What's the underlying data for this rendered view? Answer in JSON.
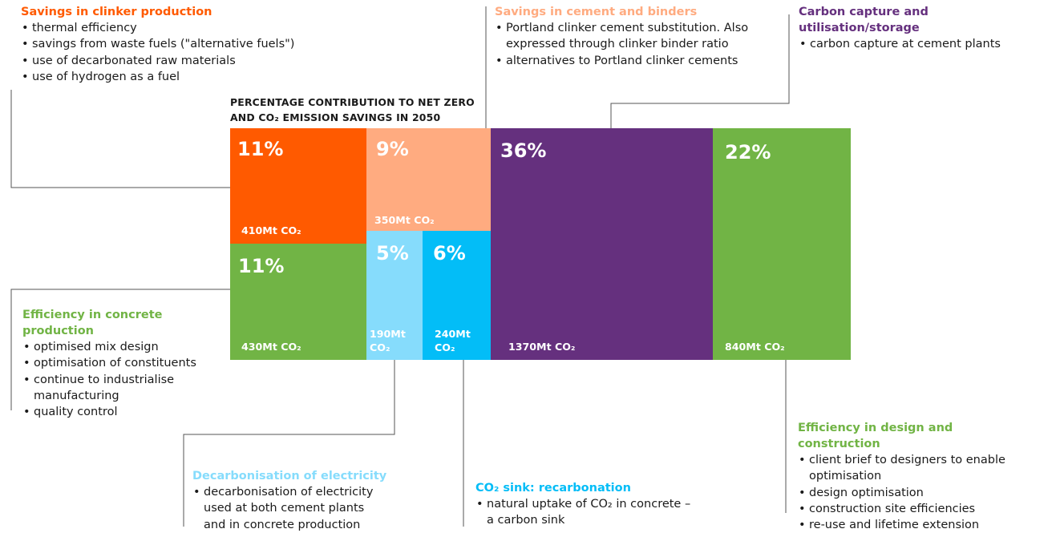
{
  "chart_data": {
    "type": "treemap",
    "title": "PERCENTAGE CONTRIBUTION TO NET ZERO AND CO₂ EMISSION SAVINGS IN 2050",
    "items": [
      {
        "name": "Savings in clinker production",
        "percent": 11,
        "percent_label": "11%",
        "value_mt": 410,
        "value_label": "410Mt CO₂",
        "color": "#ff5a00"
      },
      {
        "name": "Savings in cement and binders",
        "percent": 9,
        "percent_label": "9%",
        "value_mt": 350,
        "value_label": "350Mt CO₂",
        "color": "#ffab80"
      },
      {
        "name": "Carbon capture and utilisation/storage",
        "percent": 36,
        "percent_label": "36%",
        "value_mt": 1370,
        "value_label": "1370Mt CO₂",
        "color": "#65307e"
      },
      {
        "name": "Efficiency in design and construction",
        "percent": 22,
        "percent_label": "22%",
        "value_mt": 840,
        "value_label": "840Mt CO₂",
        "color": "#71b445"
      },
      {
        "name": "Efficiency in concrete production",
        "percent": 11,
        "percent_label": "11%",
        "value_mt": 430,
        "value_label": "430Mt CO₂",
        "color": "#71b445"
      },
      {
        "name": "Decarbonisation of electricity",
        "percent": 5,
        "percent_label": "5%",
        "value_mt": 190,
        "value_label": "190Mt CO₂",
        "color": "#86dcfc"
      },
      {
        "name": "CO₂ sink: recarbonation",
        "percent": 6,
        "percent_label": "6%",
        "value_mt": 240,
        "value_label": "240Mt CO₂",
        "color": "#03bdf7"
      }
    ]
  },
  "categories": {
    "clinker": {
      "title": "Savings in clinker production",
      "color": "#ff5a00",
      "bullets": [
        "thermal efficiency",
        "savings from waste fuels (\"alternative fuels\")",
        "use of decarbonated raw materials",
        "use of hydrogen as a fuel"
      ]
    },
    "cement": {
      "title": "Savings in cement and binders",
      "color": "#ffab80",
      "bullets": [
        "Portland clinker cement substitution. Also expressed through clinker binder ratio",
        "alternatives to Portland clinker cements"
      ]
    },
    "ccus": {
      "title": "Carbon capture and utilisation/storage",
      "color": "#65307e",
      "bullets": [
        "carbon capture at cement plants"
      ]
    },
    "concrete": {
      "title": "Efficiency in concrete production",
      "color": "#71b445",
      "bullets": [
        "optimised mix design",
        "optimisation of constituents",
        "continue to industrialise manufacturing",
        "quality control"
      ]
    },
    "electricity": {
      "title": "Decarbonisation of electricity",
      "color": "#86dcfc",
      "bullets": [
        "decarbonisation of electricity used at both cement plants and in concrete production"
      ]
    },
    "sink": {
      "title": "CO₂ sink: recarbonation",
      "color": "#03bdf7",
      "bullets": [
        "natural uptake of CO₂ in concrete – a carbon sink"
      ]
    },
    "design": {
      "title": "Efficiency in design and construction",
      "color": "#71b445",
      "bullets": [
        "client brief to designers to enable optimisation",
        "design optimisation",
        "construction site efficiencies",
        "re-use and lifetime extension"
      ]
    }
  }
}
